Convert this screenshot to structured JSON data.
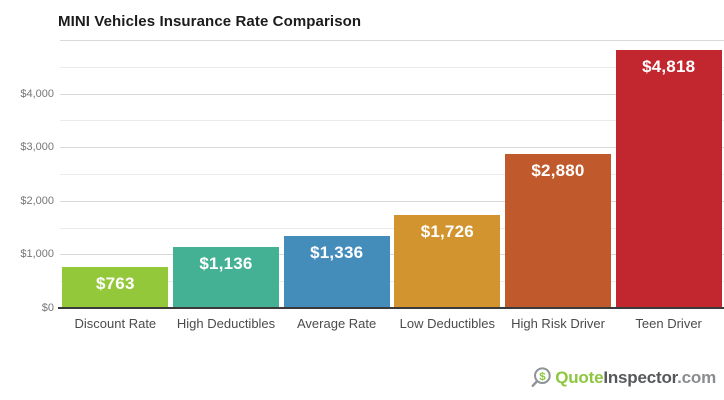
{
  "page": {
    "background": "#ffffff"
  },
  "chart_data": {
    "type": "bar",
    "title": "MINI Vehicles Insurance Rate Comparison",
    "categories": [
      "Discount Rate",
      "High Deductibles",
      "Average Rate",
      "Low Deductibles",
      "High Risk Driver",
      "Teen Driver"
    ],
    "values": [
      763,
      1136,
      1336,
      1726,
      2880,
      4818
    ],
    "value_labels": [
      "$763",
      "$1,136",
      "$1,336",
      "$1,726",
      "$2,880",
      "$4,818"
    ],
    "bar_colors": [
      "#94c83b",
      "#45b194",
      "#448cba",
      "#d2942e",
      "#c05a2c",
      "#c2272f"
    ],
    "xlabel": "",
    "ylabel": "",
    "ylim": [
      0,
      5000
    ],
    "y_ticks": [
      {
        "value": 0,
        "label": "$0"
      },
      {
        "value": 1000,
        "label": "$1,000"
      },
      {
        "value": 2000,
        "label": "$2,000"
      },
      {
        "value": 3000,
        "label": "$3,000"
      },
      {
        "value": 4000,
        "label": "$4,000"
      }
    ],
    "gridlines": {
      "minor_every": 500,
      "major_every": 1000,
      "minor_color": "#ebebeb",
      "major_color": "#d9d9d9"
    },
    "legend": "none",
    "value_label_color": "#ffffff",
    "axis_line_color": "#3a3a3a",
    "tick_label_color": "#767676",
    "category_label_color": "#4b4b4b"
  },
  "footer": {
    "logo": {
      "icon": "magnifier-dollar-icon",
      "dollar_glyph": "$",
      "word_quote": "Quote",
      "word_inspector": "Inspector",
      "word_domain": ".com",
      "color_green": "#8dc63f",
      "color_dark": "#57585b",
      "color_gray": "#8a8d8f",
      "icon_stroke": "#8f9498"
    }
  }
}
